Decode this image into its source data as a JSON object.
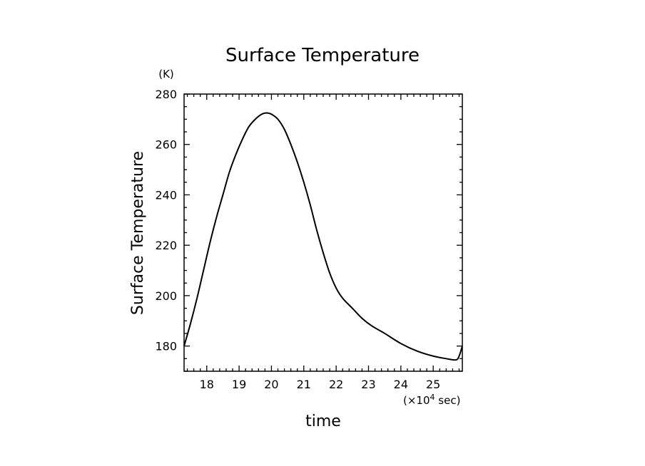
{
  "chart_data": {
    "type": "line",
    "title": "Surface Temperature",
    "xlabel": "time",
    "ylabel": "Surface Temperature",
    "x_unit": "(×10",
    "x_unit_exp": "4",
    "x_unit_suffix": " sec)",
    "y_unit": "(K)",
    "xlim": [
      17.3,
      25.9
    ],
    "ylim": [
      170,
      280
    ],
    "x_ticks": [
      18,
      19,
      20,
      21,
      22,
      23,
      24,
      25
    ],
    "x_tick_labels": [
      "18",
      "19",
      "20",
      "21",
      "22",
      "23",
      "24",
      "25"
    ],
    "y_ticks": [
      180,
      200,
      220,
      240,
      260,
      280
    ],
    "y_tick_labels": [
      "180",
      "200",
      "220",
      "240",
      "260",
      "280"
    ],
    "grid": false,
    "series": [
      {
        "x": [
          17.3,
          17.5,
          17.7,
          17.9,
          18.1,
          18.3,
          18.5,
          18.7,
          18.9,
          19.1,
          19.3,
          19.5,
          19.7,
          19.85,
          20.0,
          20.2,
          20.4,
          20.6,
          20.8,
          21.0,
          21.2,
          21.4,
          21.6,
          21.8,
          22.0,
          22.2,
          22.5,
          22.8,
          23.1,
          23.5,
          24.0,
          24.5,
          25.0,
          25.4,
          25.7,
          25.8,
          25.9
        ],
        "y": [
          180,
          189,
          199,
          210,
          221,
          231,
          240,
          249,
          256,
          262,
          267,
          270,
          272,
          272.5,
          272,
          270,
          266,
          260,
          253,
          245,
          236,
          226,
          217,
          209,
          203,
          199,
          195,
          191,
          188,
          185,
          181,
          178,
          176,
          175,
          174.5,
          176,
          180
        ]
      }
    ]
  }
}
